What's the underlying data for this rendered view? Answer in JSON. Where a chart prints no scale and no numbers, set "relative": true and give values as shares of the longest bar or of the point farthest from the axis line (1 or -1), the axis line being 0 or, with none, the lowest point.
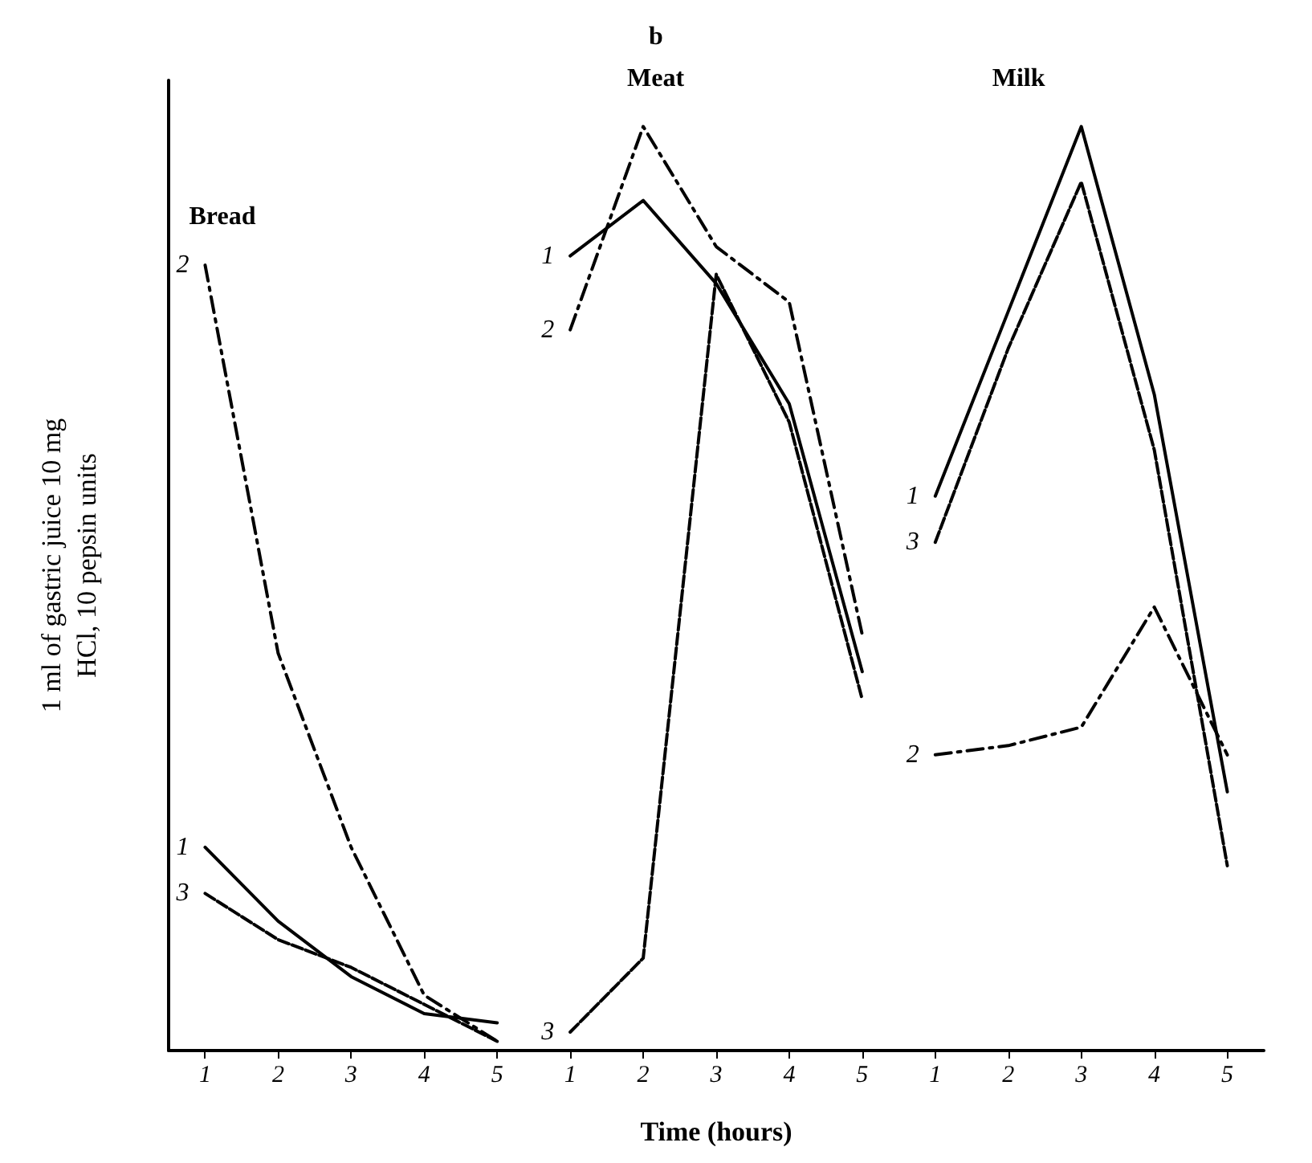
{
  "chart_data": {
    "type": "line",
    "title": "b",
    "xlabel": "Time (hours)",
    "ylabel": "1 ml of gastric juice 10 mg\nHCl, 10 pepsin units",
    "relative": true,
    "marker": "none",
    "categories": [
      "1",
      "2",
      "3",
      "4",
      "5",
      "1",
      "2",
      "3",
      "4",
      "5",
      "1",
      "2",
      "3",
      "4",
      "5"
    ],
    "annotations": [
      "Bread",
      "Meat",
      "Milk"
    ],
    "series": [
      {
        "name": "1",
        "color": "#000000",
        "line_style": "solid",
        "values": [
          0.22,
          0.14,
          0.08,
          0.04,
          0.03,
          null,
          null,
          null,
          null,
          null,
          null,
          null,
          null,
          null,
          null
        ]
      },
      {
        "name": "2",
        "color": "#000000",
        "line_style": "dashdot",
        "values": [
          0.85,
          0.43,
          0.22,
          0.06,
          0.01,
          null,
          null,
          null,
          null,
          null,
          null,
          null,
          null,
          null,
          null
        ]
      },
      {
        "name": "3",
        "color": "#000000",
        "line_style": "dashed",
        "values": [
          0.17,
          0.12,
          0.09,
          0.05,
          0.01,
          null,
          null,
          null,
          null,
          null,
          null,
          null,
          null,
          null,
          null
        ]
      },
      {
        "name": "1",
        "color": "#000000",
        "line_style": "solid",
        "values": [
          null,
          null,
          null,
          null,
          null,
          0.86,
          0.92,
          0.83,
          0.7,
          0.41,
          null,
          null,
          null,
          null,
          null
        ]
      },
      {
        "name": "2",
        "color": "#000000",
        "line_style": "dashdot",
        "values": [
          null,
          null,
          null,
          null,
          null,
          0.78,
          1.0,
          0.87,
          0.81,
          0.45,
          null,
          null,
          null,
          null,
          null
        ]
      },
      {
        "name": "3",
        "color": "#000000",
        "line_style": "dashed",
        "values": [
          null,
          null,
          null,
          null,
          null,
          0.02,
          0.1,
          0.84,
          0.68,
          0.38,
          null,
          null,
          null,
          null,
          null
        ]
      },
      {
        "name": "1",
        "color": "#000000",
        "line_style": "solid",
        "values": [
          null,
          null,
          null,
          null,
          null,
          null,
          null,
          null,
          null,
          null,
          0.6,
          0.8,
          1.0,
          0.71,
          0.28
        ]
      },
      {
        "name": "2",
        "color": "#000000",
        "line_style": "dashdot",
        "values": [
          null,
          null,
          null,
          null,
          null,
          null,
          null,
          null,
          null,
          null,
          0.32,
          0.33,
          0.35,
          0.48,
          0.32
        ]
      },
      {
        "name": "3",
        "color": "#000000",
        "line_style": "dashed",
        "values": [
          null,
          null,
          null,
          null,
          null,
          null,
          null,
          null,
          null,
          null,
          0.55,
          0.76,
          0.94,
          0.65,
          0.2
        ]
      }
    ]
  }
}
